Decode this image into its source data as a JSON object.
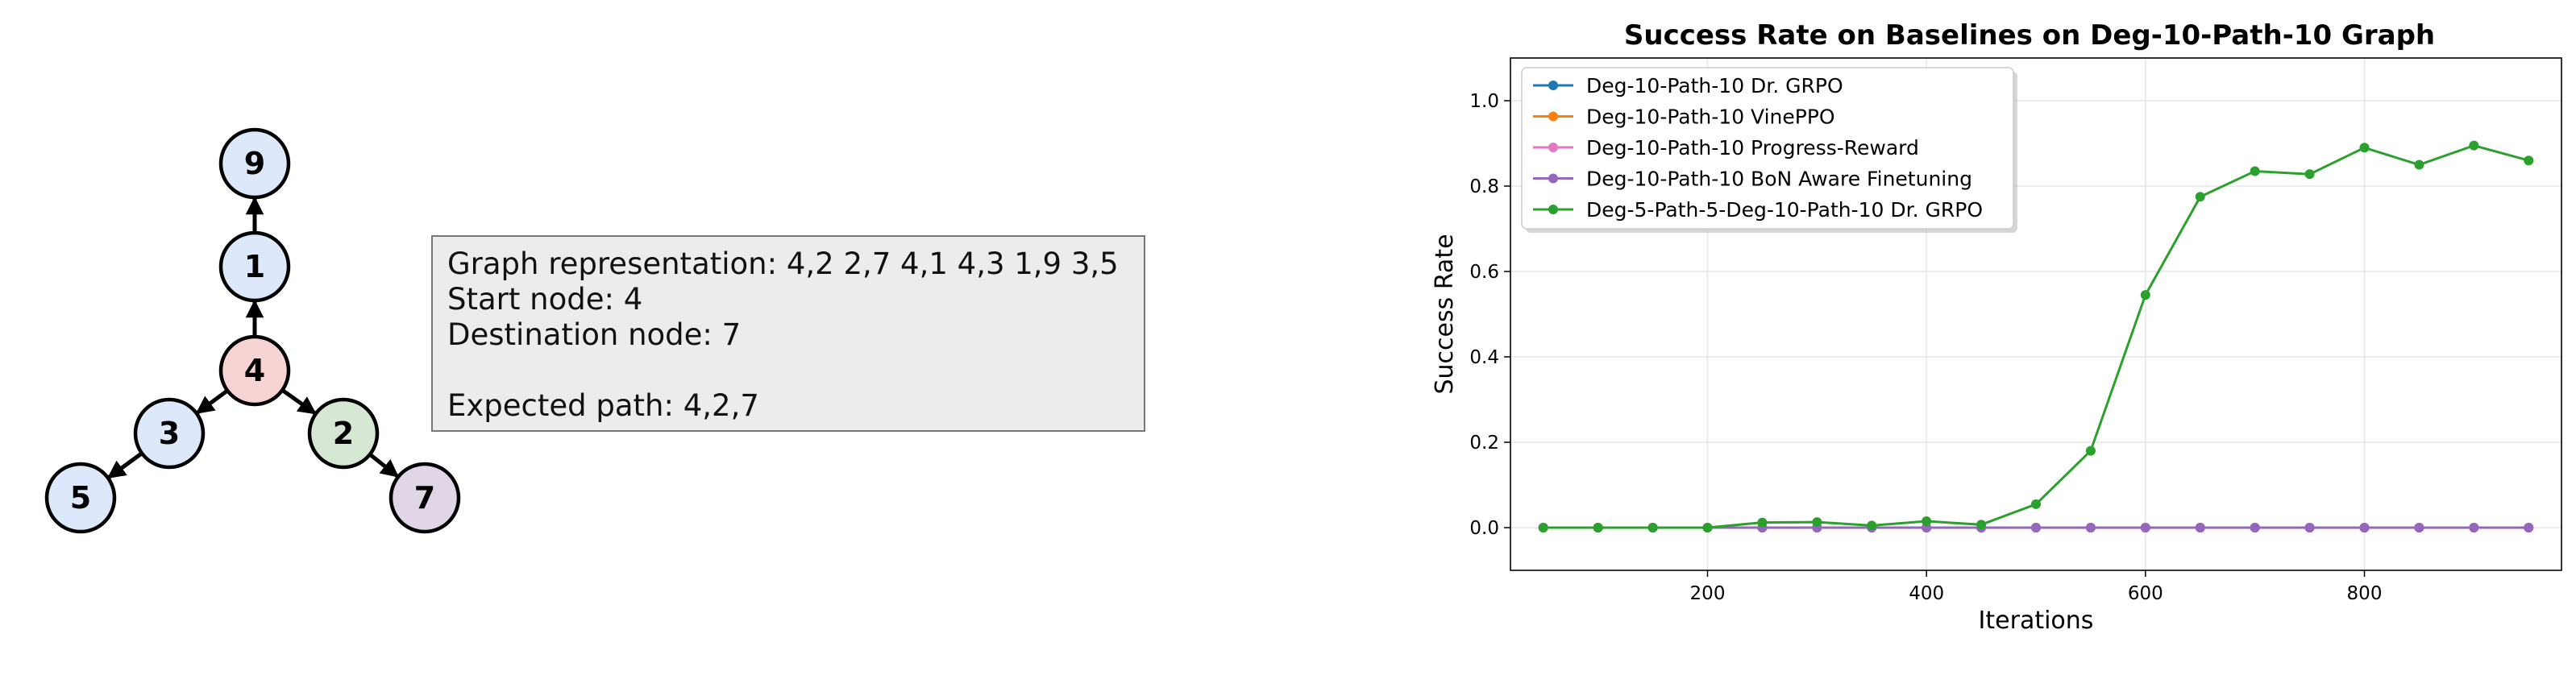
{
  "graph": {
    "nodes": [
      {
        "id": "9",
        "color": "#dde8fa"
      },
      {
        "id": "1",
        "color": "#dde8fa"
      },
      {
        "id": "4",
        "color": "#f7d3d3"
      },
      {
        "id": "3",
        "color": "#dde8fa"
      },
      {
        "id": "2",
        "color": "#d6e8d4"
      },
      {
        "id": "5",
        "color": "#dde8fa"
      },
      {
        "id": "7",
        "color": "#e1d6e6"
      }
    ],
    "edges": [
      [
        "4",
        "1"
      ],
      [
        "1",
        "9"
      ],
      [
        "4",
        "3"
      ],
      [
        "4",
        "2"
      ],
      [
        "3",
        "5"
      ],
      [
        "2",
        "7"
      ]
    ]
  },
  "info": {
    "graph_line": "Graph representation: 4,2  2,7  4,1  4,3  1,9  3,5",
    "start_line": "Start node: 4",
    "dest_line": "Destination node: 7",
    "path_line": "Expected path: 4,2,7"
  },
  "chart_data": {
    "type": "line",
    "title": "Success Rate on Baselines on Deg-10-Path-10 Graph",
    "xlabel": "Iterations",
    "ylabel": "Success Rate",
    "xlim": [
      20,
      980
    ],
    "ylim": [
      -0.1,
      1.1
    ],
    "xticks": [
      200,
      400,
      600,
      800
    ],
    "yticks": [
      0.0,
      0.2,
      0.4,
      0.6,
      0.8,
      1.0
    ],
    "grid": true,
    "legend_position": "top-left",
    "x": [
      50,
      100,
      150,
      200,
      250,
      300,
      350,
      400,
      450,
      500,
      550,
      600,
      650,
      700,
      750,
      800,
      850,
      900,
      950
    ],
    "series": [
      {
        "name": "Deg-10-Path-10 Dr. GRPO",
        "color": "#1f77b4",
        "values": [
          0,
          0,
          0,
          0,
          0,
          0,
          0,
          0,
          0,
          0,
          0,
          0,
          0,
          0,
          0,
          0,
          0,
          0,
          0
        ]
      },
      {
        "name": "Deg-10-Path-10 VinePPO",
        "color": "#ff7f0e",
        "values": [
          0,
          0,
          0,
          0,
          0,
          0,
          0,
          0,
          0,
          0,
          0,
          0,
          0,
          0,
          0,
          0,
          0,
          0,
          0
        ]
      },
      {
        "name": "Deg-10-Path-10 Progress-Reward",
        "color": "#e377c2",
        "values": [
          0,
          0,
          0,
          0,
          0,
          0,
          0,
          0,
          0,
          0,
          0,
          0,
          0,
          0,
          0,
          0,
          0,
          0,
          0
        ]
      },
      {
        "name": "Deg-10-Path-10 BoN Aware Finetuning",
        "color": "#9467bd",
        "values": [
          0,
          0,
          0,
          0,
          0,
          0,
          0,
          0,
          0,
          0,
          0,
          0,
          0,
          0,
          0,
          0,
          0,
          0,
          0
        ]
      },
      {
        "name": "Deg-5-Path-5-Deg-10-Path-10 Dr. GRPO",
        "color": "#2ca02c",
        "values": [
          0,
          0,
          0,
          0,
          0.012,
          0.013,
          0.005,
          0.015,
          0.007,
          0.055,
          0.18,
          0.545,
          0.775,
          0.835,
          0.828,
          0.89,
          0.85,
          0.895,
          0.86
        ]
      }
    ]
  }
}
